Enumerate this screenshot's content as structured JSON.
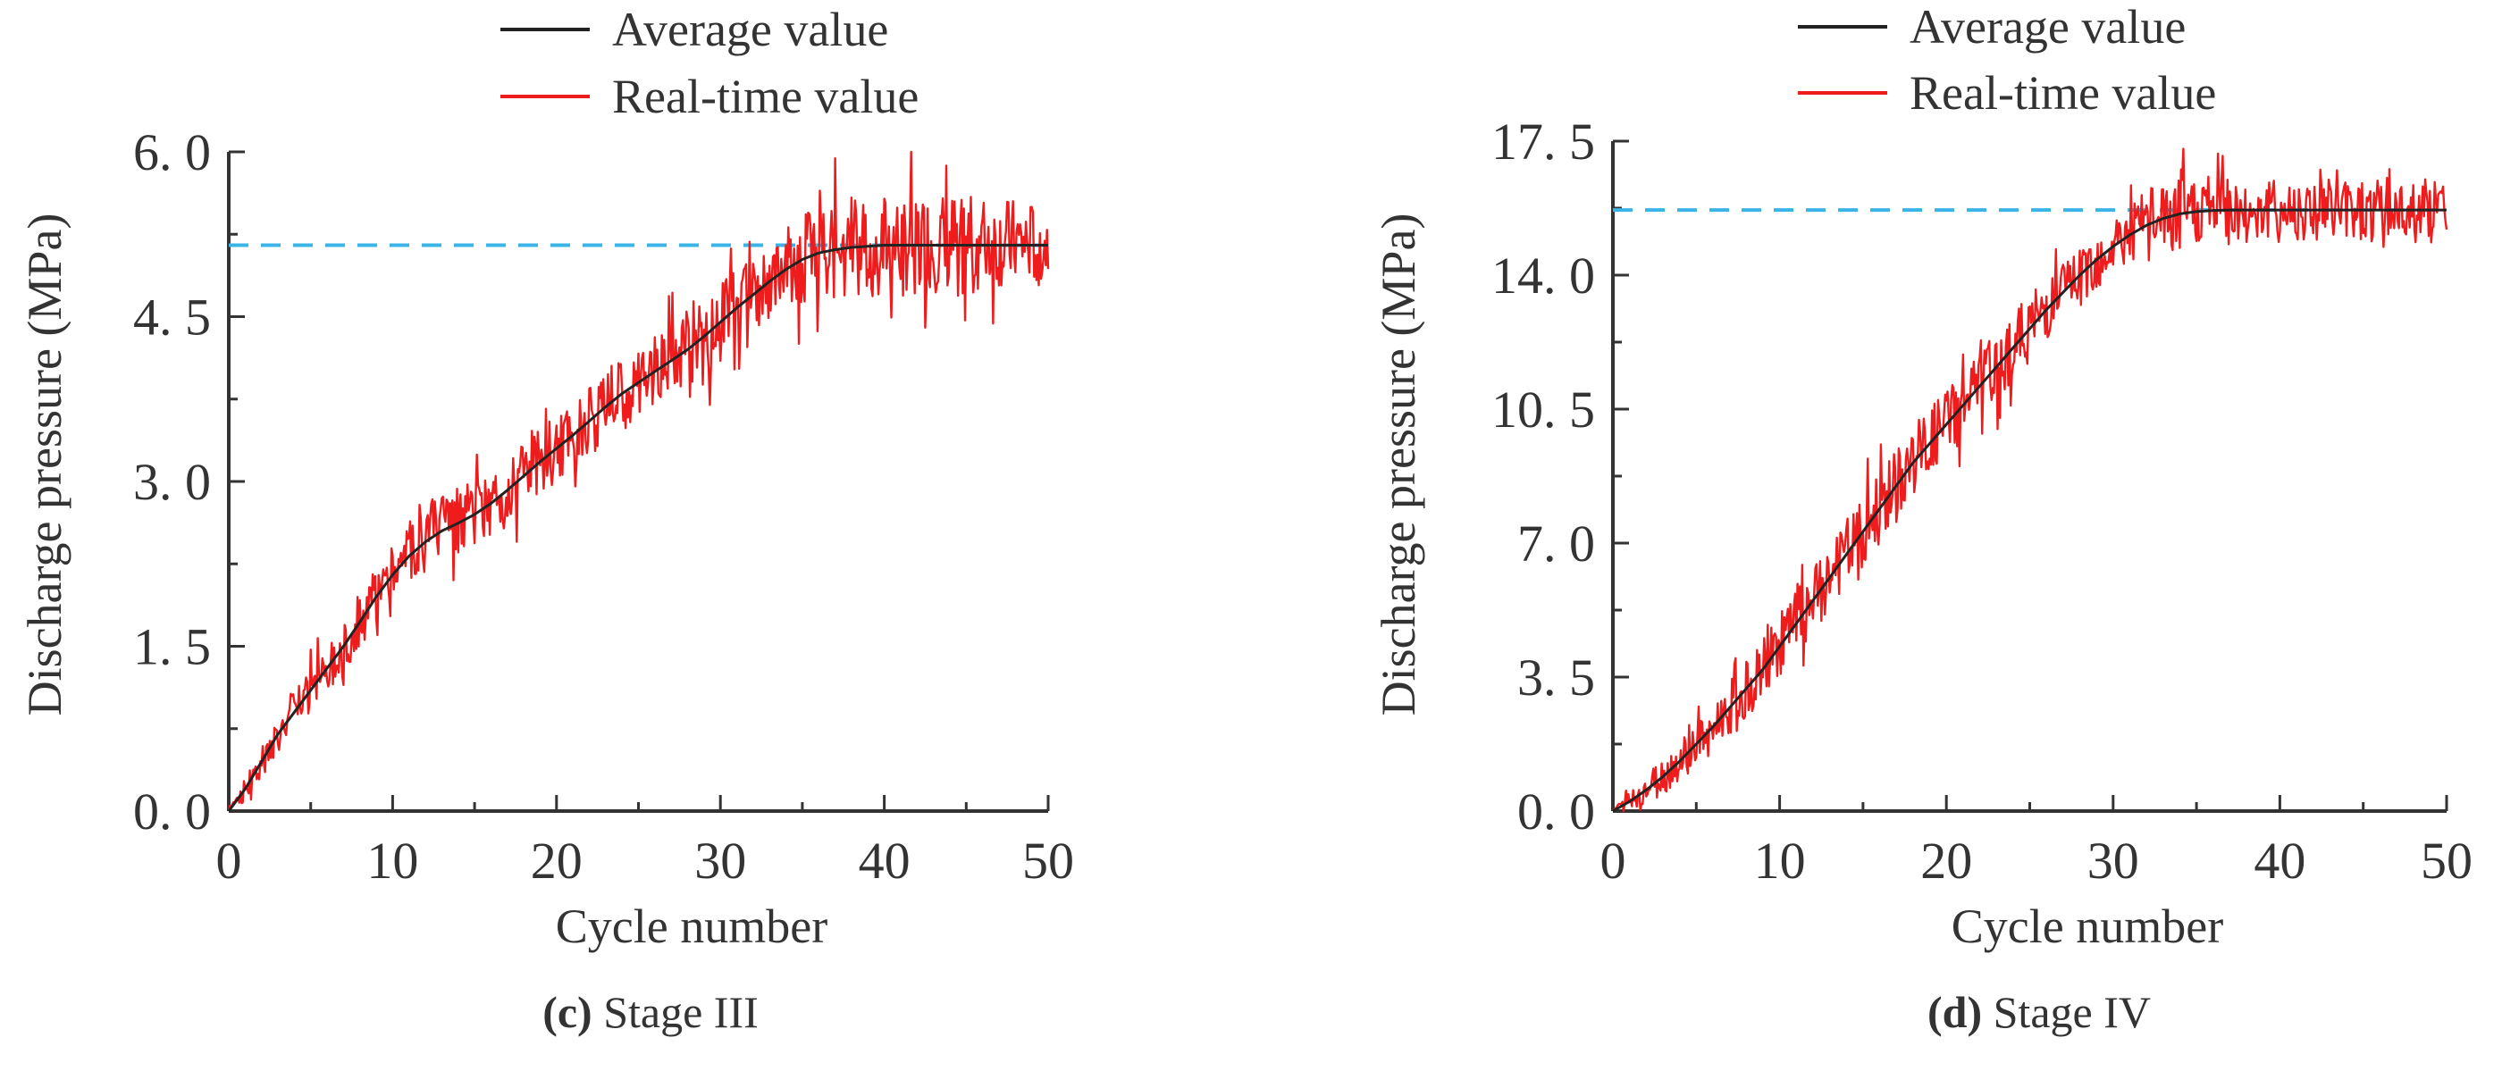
{
  "figure": {
    "panels_count": 2
  },
  "colors": {
    "average": "#222222",
    "realtime": "#ee1c1c",
    "reference": "#3ab4e6",
    "axis": "#333333",
    "text": "#333333"
  },
  "chart_data": [
    {
      "id": "c",
      "type": "line",
      "caption_id": "(c)",
      "caption_text": " Stage III",
      "xlabel": "Cycle number",
      "ylabel": "Discharge pressure (MPa)",
      "xlim": [
        0,
        50
      ],
      "ylim": [
        0,
        6.0
      ],
      "x_ticks": [
        0,
        10,
        20,
        30,
        40,
        50
      ],
      "x_tick_labels": [
        "0",
        "10",
        "20",
        "30",
        "40",
        "50"
      ],
      "y_ticks": [
        0,
        1.5,
        3.0,
        4.5,
        6.0
      ],
      "y_tick_labels": [
        "0. 0",
        "1. 5",
        "3. 0",
        "4. 5",
        "6. 0"
      ],
      "reference_y": 5.15,
      "legend": {
        "placement": "top",
        "entries": [
          "Average value",
          "Real-time value"
        ]
      },
      "series": [
        {
          "name": "Average value",
          "x": [
            0,
            1,
            2,
            3,
            4,
            5,
            6,
            7,
            8,
            9,
            10,
            11,
            12,
            13,
            14,
            15,
            16,
            17,
            18,
            19,
            20,
            21,
            22,
            23,
            24,
            25,
            26,
            27,
            28,
            29,
            30,
            31,
            32,
            33,
            34,
            35,
            36,
            37,
            38,
            39,
            40,
            41,
            42,
            43,
            44,
            45,
            46,
            47,
            48,
            49,
            50
          ],
          "y": [
            0.0,
            0.2,
            0.45,
            0.7,
            0.9,
            1.1,
            1.3,
            1.5,
            1.72,
            1.95,
            2.15,
            2.32,
            2.45,
            2.55,
            2.62,
            2.7,
            2.8,
            2.92,
            3.05,
            3.18,
            3.3,
            3.42,
            3.55,
            3.68,
            3.8,
            3.9,
            4.0,
            4.1,
            4.2,
            4.32,
            4.45,
            4.58,
            4.7,
            4.82,
            4.93,
            5.02,
            5.08,
            5.11,
            5.13,
            5.14,
            5.15,
            5.15,
            5.15,
            5.15,
            5.15,
            5.15,
            5.15,
            5.15,
            5.15,
            5.15,
            5.15
          ]
        },
        {
          "name": "Real-time value",
          "x": [
            0,
            1,
            2,
            3,
            4,
            5,
            6,
            7,
            8,
            9,
            10,
            11,
            12,
            13,
            14,
            15,
            16,
            17,
            18,
            19,
            20,
            21,
            22,
            23,
            24,
            25,
            26,
            27,
            28,
            29,
            30,
            31,
            32,
            33,
            34,
            35,
            36,
            37,
            38,
            39,
            40,
            41,
            42,
            43,
            44,
            45,
            46,
            47,
            48,
            49,
            50
          ],
          "y": [
            0.0,
            0.2,
            0.45,
            0.7,
            0.9,
            1.1,
            1.3,
            1.5,
            1.72,
            1.95,
            2.15,
            2.32,
            2.45,
            2.55,
            2.62,
            2.7,
            2.8,
            2.92,
            3.05,
            3.18,
            3.3,
            3.42,
            3.55,
            3.68,
            3.8,
            3.9,
            4.0,
            4.1,
            4.2,
            4.32,
            4.45,
            4.58,
            4.7,
            4.82,
            4.93,
            5.02,
            5.08,
            5.11,
            5.13,
            5.14,
            5.15,
            5.15,
            5.15,
            5.15,
            5.15,
            5.15,
            5.15,
            5.15,
            5.15,
            5.15,
            5.15
          ],
          "noise_amplitude": [
            0.08,
            0.1,
            0.14,
            0.16,
            0.18,
            0.2,
            0.22,
            0.24,
            0.25,
            0.26,
            0.28,
            0.3,
            0.32,
            0.32,
            0.32,
            0.3,
            0.28,
            0.28,
            0.3,
            0.3,
            0.3,
            0.3,
            0.32,
            0.32,
            0.34,
            0.34,
            0.36,
            0.36,
            0.36,
            0.36,
            0.36,
            0.36,
            0.38,
            0.38,
            0.4,
            0.4,
            0.42,
            0.44,
            0.46,
            0.46,
            0.46,
            0.46,
            0.46,
            0.46,
            0.46,
            0.46,
            0.44,
            0.42,
            0.4,
            0.38,
            0.36
          ]
        }
      ]
    },
    {
      "id": "d",
      "type": "line",
      "caption_id": "(d)",
      "caption_text": " Stage IV",
      "xlabel": "Cycle number",
      "ylabel": "Discharge pressure (MPa)",
      "xlim": [
        0,
        50
      ],
      "ylim": [
        0,
        17.5
      ],
      "x_ticks": [
        0,
        10,
        20,
        30,
        40,
        50
      ],
      "x_tick_labels": [
        "0",
        "10",
        "20",
        "30",
        "40",
        "50"
      ],
      "y_ticks": [
        0,
        3.5,
        7.0,
        10.5,
        14.0,
        17.5
      ],
      "y_tick_labels": [
        "0. 0",
        "3. 5",
        "7. 0",
        "10. 5",
        "14. 0",
        "17. 5"
      ],
      "reference_y": 15.7,
      "legend": {
        "placement": "top",
        "entries": [
          "Average value",
          "Real-time value"
        ]
      },
      "series": [
        {
          "name": "Average value",
          "x": [
            0,
            1,
            2,
            3,
            4,
            5,
            6,
            7,
            8,
            9,
            10,
            11,
            12,
            13,
            14,
            15,
            16,
            17,
            18,
            19,
            20,
            21,
            22,
            23,
            24,
            25,
            26,
            27,
            28,
            29,
            30,
            31,
            32,
            33,
            34,
            35,
            36,
            37,
            38,
            39,
            40,
            41,
            42,
            43,
            44,
            45,
            46,
            47,
            48,
            49,
            50
          ],
          "y": [
            0.0,
            0.25,
            0.55,
            0.9,
            1.3,
            1.75,
            2.2,
            2.7,
            3.2,
            3.7,
            4.3,
            4.9,
            5.5,
            6.1,
            6.7,
            7.3,
            7.9,
            8.5,
            9.1,
            9.6,
            10.1,
            10.6,
            11.1,
            11.6,
            12.1,
            12.6,
            13.1,
            13.55,
            14.0,
            14.4,
            14.75,
            15.05,
            15.3,
            15.48,
            15.6,
            15.66,
            15.69,
            15.7,
            15.7,
            15.7,
            15.7,
            15.7,
            15.7,
            15.7,
            15.7,
            15.7,
            15.7,
            15.7,
            15.7,
            15.7,
            15.7
          ]
        },
        {
          "name": "Real-time value",
          "x": [
            0,
            1,
            2,
            3,
            4,
            5,
            6,
            7,
            8,
            9,
            10,
            11,
            12,
            13,
            14,
            15,
            16,
            17,
            18,
            19,
            20,
            21,
            22,
            23,
            24,
            25,
            26,
            27,
            28,
            29,
            30,
            31,
            32,
            33,
            34,
            35,
            36,
            37,
            38,
            39,
            40,
            41,
            42,
            43,
            44,
            45,
            46,
            47,
            48,
            49,
            50
          ],
          "y": [
            0.0,
            0.25,
            0.55,
            0.9,
            1.3,
            1.75,
            2.2,
            2.7,
            3.2,
            3.7,
            4.3,
            4.9,
            5.5,
            6.1,
            6.7,
            7.3,
            7.9,
            8.5,
            9.1,
            9.6,
            10.1,
            10.6,
            11.1,
            11.6,
            12.1,
            12.6,
            13.1,
            13.55,
            14.0,
            14.4,
            14.75,
            15.05,
            15.3,
            15.48,
            15.6,
            15.66,
            15.69,
            15.7,
            15.7,
            15.7,
            15.7,
            15.7,
            15.7,
            15.7,
            15.7,
            15.7,
            15.7,
            15.7,
            15.7,
            15.7,
            15.7
          ],
          "noise_amplitude": [
            0.3,
            0.4,
            0.45,
            0.5,
            0.55,
            0.6,
            0.65,
            0.7,
            0.75,
            0.8,
            0.8,
            0.85,
            0.85,
            0.9,
            0.9,
            0.9,
            0.95,
            0.95,
            0.95,
            0.95,
            0.95,
            0.9,
            0.9,
            0.9,
            0.9,
            0.9,
            0.85,
            0.85,
            0.85,
            0.85,
            0.85,
            0.85,
            0.9,
            0.9,
            0.9,
            0.9,
            0.9,
            0.9,
            0.85,
            0.85,
            0.85,
            0.85,
            0.85,
            0.85,
            0.85,
            0.85,
            0.85,
            0.85,
            0.85,
            0.85,
            0.85
          ]
        }
      ]
    }
  ]
}
